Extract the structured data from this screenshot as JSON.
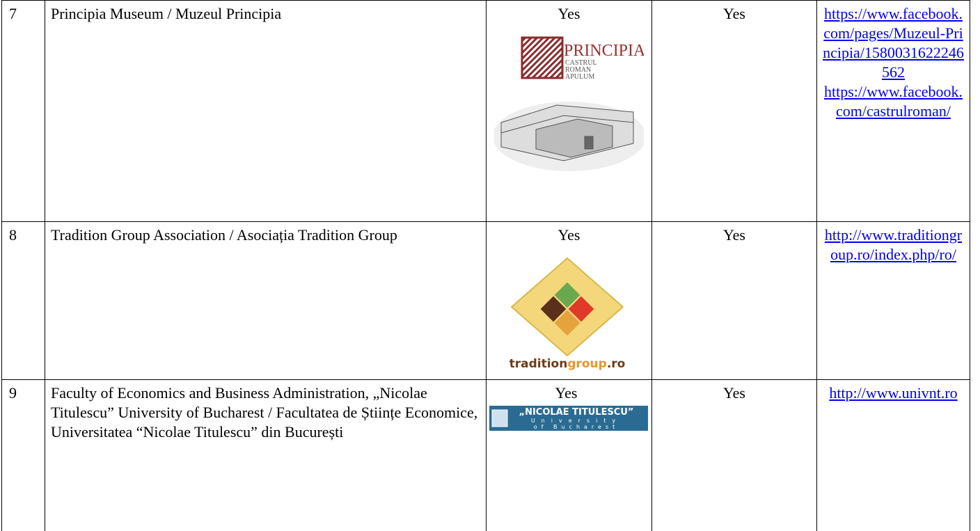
{
  "table": {
    "rows": [
      {
        "number": "7",
        "name": "Principia Museum / Muzeul Principia",
        "col3": "Yes",
        "col4": "Yes",
        "links": [
          "https://www.facebook.com/pages/Muzeul-Principia/1580031622246562",
          "https://www.facebook.com/castrulroman/"
        ],
        "logo": {
          "title": "PRINCIPIA",
          "lines": [
            "CASTRUL",
            "ROMAN",
            "APULUM"
          ]
        }
      },
      {
        "number": "8",
        "name": "Tradition Group Association / Asociația Tradition Group",
        "col3": "Yes",
        "col4": "Yes",
        "links": [
          "http://www.traditiongroup.ro/index.php/ro/"
        ],
        "logo": {
          "parts": [
            "tradition",
            "group",
            ".ro"
          ]
        }
      },
      {
        "number": "9",
        "name": "Faculty of Economics and Business Administration, „Nicolae Titulescu” University of Bucharest / Facultatea de Științe Economice, Universitatea “Nicolae Titulescu” din București",
        "col3": "Yes",
        "col4": "Yes",
        "links": [
          "http://www.univnt.ro"
        ],
        "logo": {
          "lines": [
            "„NICOLAE TITULESCU”",
            "University",
            "of Bucharest"
          ]
        }
      }
    ]
  }
}
